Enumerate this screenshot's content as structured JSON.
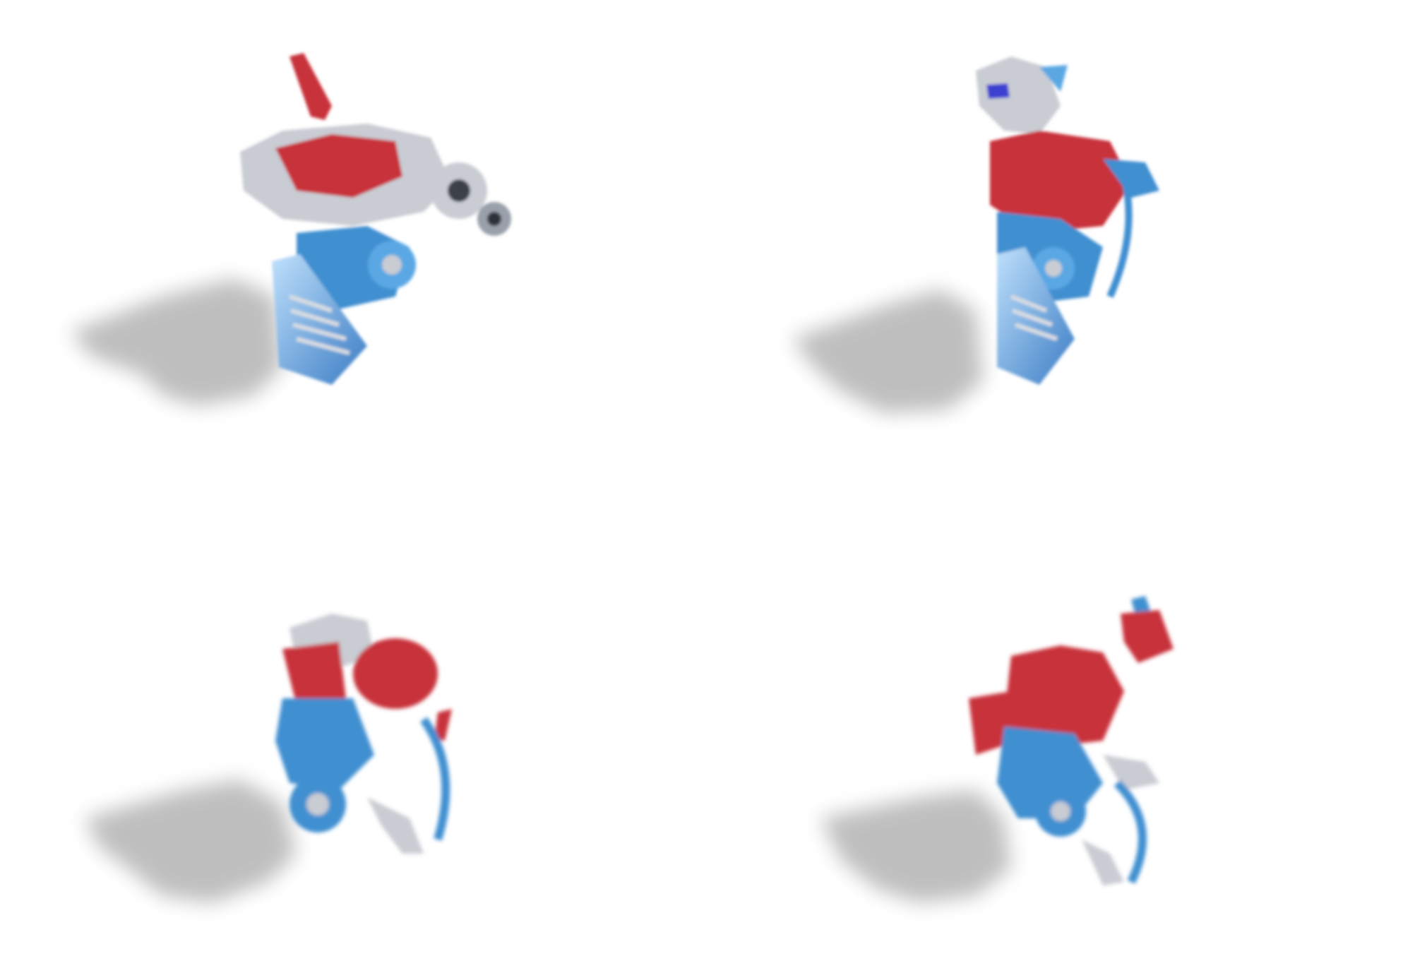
{
  "frames": [
    {
      "id": 1,
      "subject": "robot-exploded-parts"
    },
    {
      "id": 2,
      "subject": "robot-exploded-parts"
    },
    {
      "id": 3,
      "subject": "robot-assembling"
    },
    {
      "id": 4,
      "subject": "robot-assembling"
    }
  ],
  "colors": {
    "red": "#c8323a",
    "blue": "#3f8fd0",
    "light_blue": "#8fc4ef",
    "silver": "#c9ccd3",
    "dark": "#3b3f4a",
    "shadow": "#9a9a9a",
    "background": "#ffffff"
  }
}
